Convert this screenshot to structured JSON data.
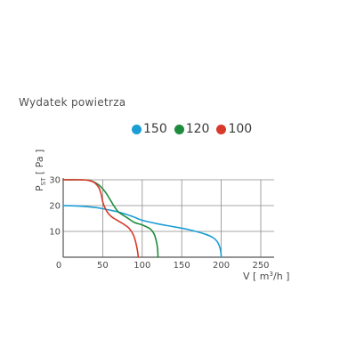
{
  "chart_data": {
    "type": "line",
    "title": "Wydatek powietrza",
    "xlabel_main": "V [ m",
    "xlabel_sup": "3",
    "xlabel_tail": "/h ]",
    "ylabel_main": "P",
    "ylabel_sub": "ST",
    "ylabel_tail": " [ Pa ]",
    "xlim": [
      0,
      250
    ],
    "ylim": [
      0,
      30
    ],
    "xticks": [
      0,
      50,
      100,
      150,
      200,
      250
    ],
    "yticks": [
      10,
      20,
      30
    ],
    "grid": true,
    "legend_position": "top",
    "series": [
      {
        "name": "150",
        "color": "#1a9ed4",
        "x": [
          0,
          20,
          40,
          50,
          60,
          70,
          80,
          90,
          100,
          120,
          140,
          160,
          180,
          190,
          195,
          198,
          199.5,
          200
        ],
        "y": [
          20,
          19.8,
          19.3,
          18.8,
          18.2,
          17.5,
          16.6,
          15.5,
          14.3,
          12.9,
          11.8,
          10.6,
          8.9,
          7.5,
          6,
          4,
          2,
          0
        ]
      },
      {
        "name": "120",
        "color": "#1e8c3c",
        "x": [
          0,
          20,
          30,
          35,
          40,
          45,
          50,
          55,
          60,
          65,
          70,
          80,
          90,
          100,
          110,
          115,
          118,
          119.5,
          120
        ],
        "y": [
          30,
          30,
          29.9,
          29.6,
          29,
          28,
          26.5,
          24.5,
          22,
          19.5,
          17.5,
          15.5,
          13.5,
          12.5,
          11,
          9,
          6,
          3,
          0
        ]
      },
      {
        "name": "100",
        "color": "#d8392a",
        "x": [
          0,
          20,
          30,
          35,
          40,
          45,
          48,
          50,
          53,
          57,
          62,
          70,
          78,
          84,
          89,
          92,
          94,
          95
        ],
        "y": [
          30,
          30,
          29.9,
          29.5,
          28.8,
          27,
          24.5,
          21.5,
          19,
          17,
          15.5,
          14,
          12.5,
          11,
          8.5,
          5.5,
          2.5,
          0
        ]
      }
    ]
  }
}
